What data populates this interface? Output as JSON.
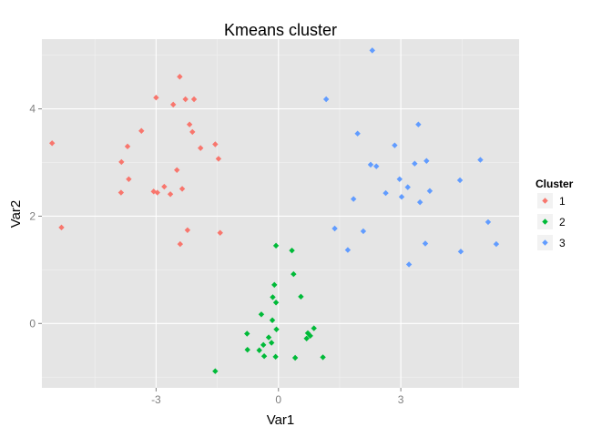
{
  "chart_data": {
    "type": "scatter",
    "title": "Kmeans cluster",
    "xlabel": "Var1",
    "ylabel": "Var2",
    "xlim": [
      -5.8,
      5.9
    ],
    "ylim": [
      -1.2,
      5.3
    ],
    "x_ticks": [
      -3,
      0,
      3
    ],
    "y_ticks": [
      0,
      2,
      4
    ],
    "x_tick_labels": [
      "-3",
      "0",
      "3"
    ],
    "y_tick_labels": [
      "0",
      "2",
      "4"
    ],
    "grid": true,
    "legend": {
      "title": "Cluster",
      "position": "right"
    },
    "series": [
      {
        "name": "1",
        "color": "#F8766D",
        "points": [
          [
            -5.55,
            3.36
          ],
          [
            -5.32,
            1.79
          ],
          [
            -3.86,
            2.44
          ],
          [
            -3.85,
            3.01
          ],
          [
            -3.7,
            3.3
          ],
          [
            -3.67,
            2.69
          ],
          [
            -3.36,
            3.59
          ],
          [
            -3.06,
            2.46
          ],
          [
            -3.0,
            4.21
          ],
          [
            -2.97,
            2.44
          ],
          [
            -2.8,
            2.55
          ],
          [
            -2.65,
            2.41
          ],
          [
            -2.58,
            4.08
          ],
          [
            -2.49,
            2.86
          ],
          [
            -2.42,
            4.6
          ],
          [
            -2.41,
            1.48
          ],
          [
            -2.36,
            2.51
          ],
          [
            -2.28,
            4.18
          ],
          [
            -2.23,
            1.74
          ],
          [
            -2.18,
            3.71
          ],
          [
            -2.11,
            3.57
          ],
          [
            -2.07,
            4.18
          ],
          [
            -1.91,
            3.27
          ],
          [
            -1.55,
            3.34
          ],
          [
            -1.47,
            3.07
          ],
          [
            -1.43,
            1.69
          ]
        ]
      },
      {
        "name": "2",
        "color": "#00BA38",
        "points": [
          [
            -1.55,
            -0.89
          ],
          [
            -0.77,
            -0.19
          ],
          [
            -0.76,
            -0.49
          ],
          [
            -0.47,
            -0.5
          ],
          [
            -0.42,
            0.17
          ],
          [
            -0.37,
            -0.4
          ],
          [
            -0.35,
            -0.61
          ],
          [
            -0.24,
            -0.26
          ],
          [
            -0.17,
            -0.36
          ],
          [
            -0.15,
            0.06
          ],
          [
            -0.14,
            0.49
          ],
          [
            -0.1,
            0.72
          ],
          [
            -0.07,
            -0.62
          ],
          [
            -0.06,
            1.45
          ],
          [
            -0.06,
            0.39
          ],
          [
            -0.05,
            -0.11
          ],
          [
            0.33,
            1.36
          ],
          [
            0.37,
            0.92
          ],
          [
            0.41,
            -0.64
          ],
          [
            0.55,
            0.5
          ],
          [
            0.69,
            -0.28
          ],
          [
            0.72,
            -0.18
          ],
          [
            0.78,
            -0.23
          ],
          [
            0.87,
            -0.09
          ],
          [
            1.09,
            -0.63
          ]
        ]
      },
      {
        "name": "3",
        "color": "#619CFF",
        "points": [
          [
            1.17,
            4.18
          ],
          [
            1.38,
            1.77
          ],
          [
            1.7,
            1.37
          ],
          [
            1.84,
            2.32
          ],
          [
            1.94,
            3.54
          ],
          [
            2.08,
            1.72
          ],
          [
            2.26,
            2.96
          ],
          [
            2.3,
            5.09
          ],
          [
            2.4,
            2.93
          ],
          [
            2.63,
            2.43
          ],
          [
            2.85,
            3.32
          ],
          [
            2.97,
            2.69
          ],
          [
            3.02,
            2.36
          ],
          [
            3.17,
            2.54
          ],
          [
            3.2,
            1.1
          ],
          [
            3.34,
            2.98
          ],
          [
            3.43,
            3.71
          ],
          [
            3.47,
            2.26
          ],
          [
            3.6,
            1.49
          ],
          [
            3.63,
            3.03
          ],
          [
            3.71,
            2.47
          ],
          [
            4.45,
            2.67
          ],
          [
            4.47,
            1.34
          ],
          [
            4.95,
            3.05
          ],
          [
            5.14,
            1.89
          ],
          [
            5.34,
            1.48
          ]
        ]
      }
    ]
  }
}
